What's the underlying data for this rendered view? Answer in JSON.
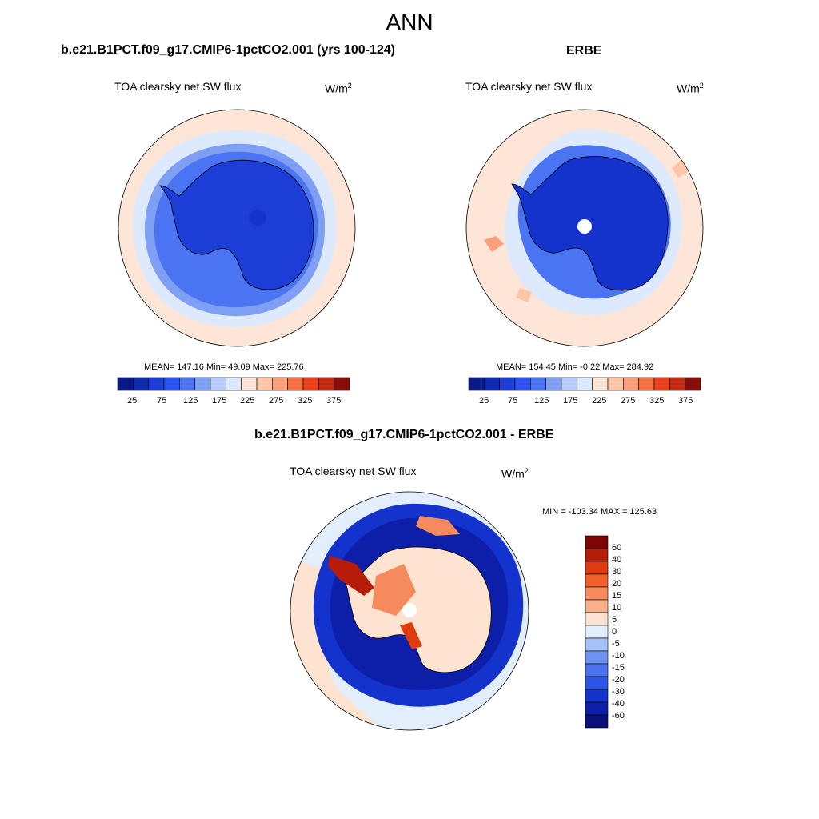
{
  "figure": {
    "title": "ANN"
  },
  "colors": {
    "abs_scale": [
      "#0a1a8a",
      "#0f2ab0",
      "#1c3ed6",
      "#2a52ee",
      "#4a74f2",
      "#7f9ff5",
      "#b7ccfa",
      "#dde9fc",
      "#fde6d8",
      "#fbc6a6",
      "#f9a07a",
      "#f5703f",
      "#e8401a",
      "#c42a10",
      "#8b0a0a"
    ],
    "diff_scale": [
      "#0a0f7a",
      "#0d1fa8",
      "#1433cc",
      "#2b55e6",
      "#4a72ee",
      "#6f93f2",
      "#a6c0f8",
      "#e3eefc",
      "#fde3d0",
      "#f8b08a",
      "#f58a5c",
      "#f25f2a",
      "#e03a10",
      "#b51d08",
      "#7a0606"
    ]
  },
  "panels": [
    {
      "title": "b.e21.B1PCT.f09_g17.CMIP6-1pctCO2.001 (yrs 100-124)",
      "variable": "TOA clearsky net SW flux",
      "units_base": "W/m",
      "units_exp": "2",
      "stats": "MEAN= 147.16  Min=  49.09  Max= 225.76",
      "colorbar_labels": [
        "25",
        "75",
        "125",
        "175",
        "225",
        "275",
        "325",
        "375"
      ]
    },
    {
      "title": "ERBE",
      "variable": "TOA clearsky net SW flux",
      "units_base": "W/m",
      "units_exp": "2",
      "stats": "MEAN= 154.45  Min=  -0.22  Max= 284.92",
      "colorbar_labels": [
        "25",
        "75",
        "125",
        "175",
        "225",
        "275",
        "325",
        "375"
      ]
    },
    {
      "title": "b.e21.B1PCT.f09_g17.CMIP6-1pctCO2.001 - ERBE",
      "variable": "TOA clearsky net SW flux",
      "units_base": "W/m",
      "units_exp": "2",
      "minmax": "MIN = -103.34 MAX = 125.63",
      "colorbar_labels": [
        "60",
        "40",
        "30",
        "20",
        "15",
        "10",
        "5",
        "0",
        "-5",
        "-10",
        "-15",
        "-20",
        "-30",
        "-40",
        "-60"
      ]
    }
  ]
}
